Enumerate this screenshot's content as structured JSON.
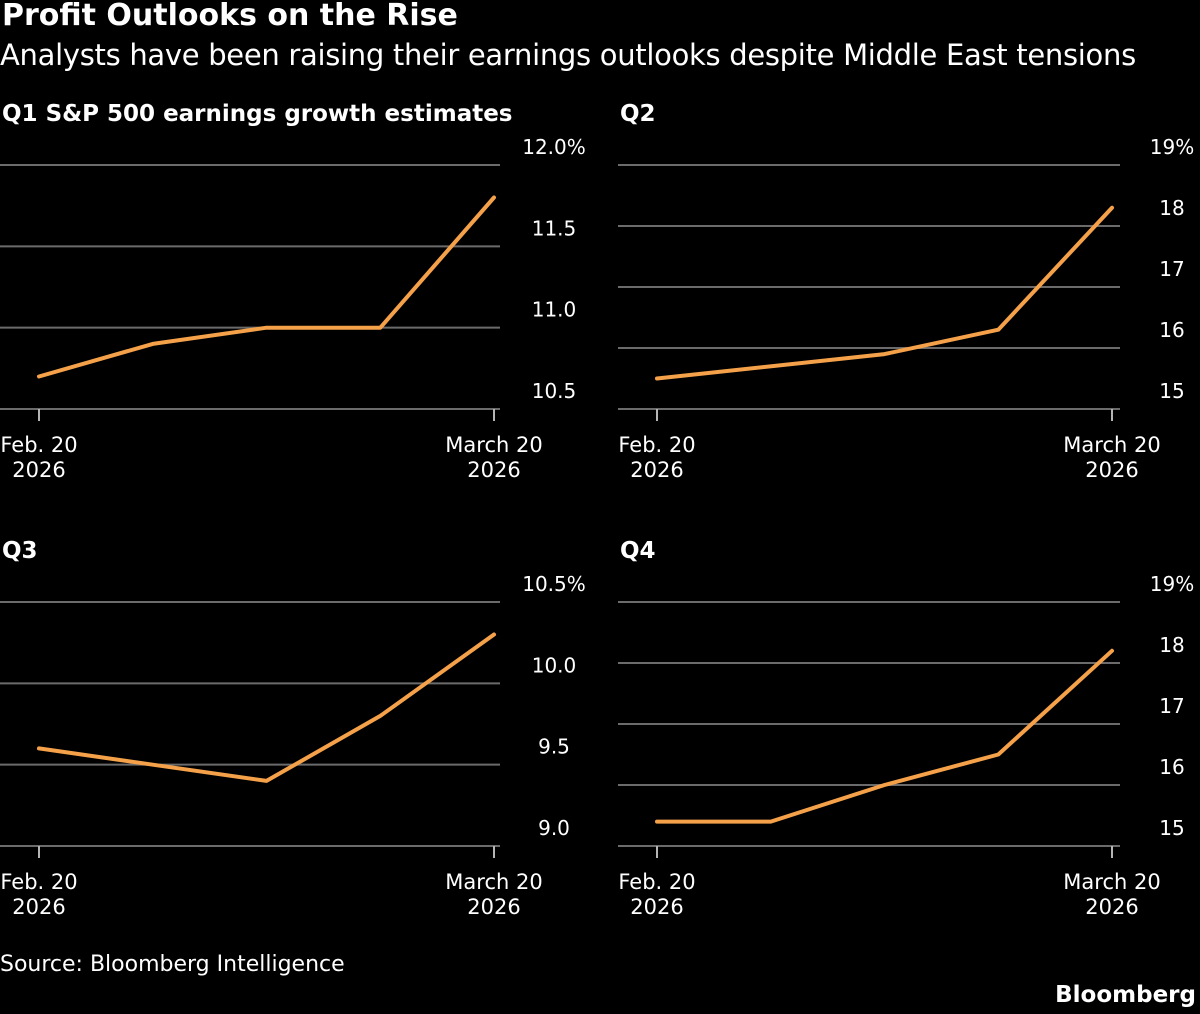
{
  "title": "Profit Outlooks on the Rise",
  "subtitle": "Analysts have been raising their earnings outlooks despite Middle East tensions",
  "source": "Source: Bloomberg Intelligence",
  "logo": "Bloomberg",
  "colors": {
    "background": "#000000",
    "line": "#f5a14a",
    "grid": "#6b6b6b",
    "text": "#ffffff"
  },
  "chart_data": [
    {
      "type": "line",
      "title": "Q1 S&P 500 earnings growth estimates",
      "ylim": [
        10.5,
        12.0
      ],
      "yticks": [
        {
          "value": 12.0,
          "label": "12.0%"
        },
        {
          "value": 11.5,
          "label": "11.5"
        },
        {
          "value": 11.0,
          "label": "11.0"
        },
        {
          "value": 10.5,
          "label": "10.5"
        }
      ],
      "xticks": [
        {
          "x": 0,
          "line1": "Feb. 20",
          "line2": "2026"
        },
        {
          "x": 4,
          "line1": "March 20",
          "line2": "2026"
        }
      ],
      "series": [
        {
          "x": [
            0,
            1,
            2,
            3,
            4
          ],
          "values": [
            10.7,
            10.9,
            11.0,
            11.0,
            11.8
          ]
        }
      ]
    },
    {
      "type": "line",
      "title": "Q2",
      "ylim": [
        15,
        19
      ],
      "yticks": [
        {
          "value": 19,
          "label": "19%"
        },
        {
          "value": 18,
          "label": "18"
        },
        {
          "value": 17,
          "label": "17"
        },
        {
          "value": 16,
          "label": "16"
        },
        {
          "value": 15,
          "label": "15"
        }
      ],
      "xticks": [
        {
          "x": 0,
          "line1": "Feb. 20",
          "line2": "2026"
        },
        {
          "x": 4,
          "line1": "March 20",
          "line2": "2026"
        }
      ],
      "series": [
        {
          "x": [
            0,
            2,
            3,
            4
          ],
          "values": [
            15.5,
            15.9,
            16.3,
            18.3
          ]
        }
      ]
    },
    {
      "type": "line",
      "title": "Q3",
      "ylim": [
        9.0,
        10.5
      ],
      "yticks": [
        {
          "value": 10.5,
          "label": "10.5%"
        },
        {
          "value": 10.0,
          "label": "10.0"
        },
        {
          "value": 9.5,
          "label": "9.5"
        },
        {
          "value": 9.0,
          "label": "9.0"
        }
      ],
      "xticks": [
        {
          "x": 0,
          "line1": "Feb. 20",
          "line2": "2026"
        },
        {
          "x": 4,
          "line1": "March 20",
          "line2": "2026"
        }
      ],
      "series": [
        {
          "x": [
            0,
            1,
            2,
            3,
            4
          ],
          "values": [
            9.6,
            9.5,
            9.4,
            9.8,
            10.3
          ]
        }
      ]
    },
    {
      "type": "line",
      "title": "Q4",
      "ylim": [
        15,
        19
      ],
      "yticks": [
        {
          "value": 19,
          "label": "19%"
        },
        {
          "value": 18,
          "label": "18"
        },
        {
          "value": 17,
          "label": "17"
        },
        {
          "value": 16,
          "label": "16"
        },
        {
          "value": 15,
          "label": "15"
        }
      ],
      "xticks": [
        {
          "x": 0,
          "line1": "Feb. 20",
          "line2": "2026"
        },
        {
          "x": 4,
          "line1": "March 20",
          "line2": "2026"
        }
      ],
      "series": [
        {
          "x": [
            0,
            1,
            2,
            3,
            4
          ],
          "values": [
            15.4,
            15.4,
            16.0,
            16.5,
            18.2
          ]
        }
      ]
    }
  ]
}
